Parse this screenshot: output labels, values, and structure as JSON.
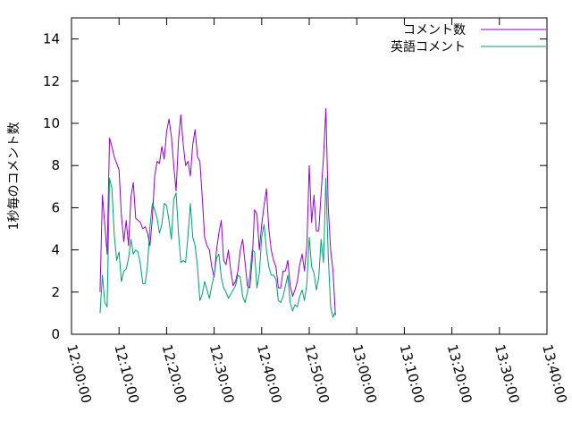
{
  "chart_data": {
    "type": "line",
    "title": "",
    "xlabel": "",
    "ylabel": "1秒毎のコメント数",
    "x_start": "12:06:00",
    "x_step_seconds": 30,
    "xlim": [
      "12:00:00",
      "13:40:00"
    ],
    "ylim": [
      0,
      15
    ],
    "x_ticks": [
      "12:00:00",
      "12:10:00",
      "12:20:00",
      "12:30:00",
      "12:40:00",
      "12:50:00",
      "13:00:00",
      "13:10:00",
      "13:20:00",
      "13:30:00",
      "13:40:00"
    ],
    "y_ticks": [
      "0",
      "2",
      "4",
      "6",
      "8",
      "10",
      "12",
      "14"
    ],
    "grid": false,
    "legend_position": "top-right",
    "series": [
      {
        "name": "コメント数",
        "color": "#9400d3",
        "values": [
          2.0,
          6.6,
          5.2,
          3.8,
          9.3,
          8.9,
          8.4,
          8.1,
          7.8,
          5.6,
          4.4,
          5.4,
          4.2,
          6.5,
          7.2,
          5.5,
          5.4,
          5.3,
          5.0,
          5.1,
          4.8,
          4.2,
          5.5,
          7.5,
          8.2,
          8.1,
          8.9,
          8.3,
          9.6,
          10.2,
          9.4,
          8.0,
          6.8,
          9.2,
          10.4,
          9.0,
          8.0,
          8.2,
          7.5,
          9.0,
          9.7,
          8.4,
          8.2,
          6.5,
          4.6,
          4.2,
          4.0,
          3.2,
          2.7,
          4.0,
          4.8,
          5.4,
          3.5,
          3.3,
          4.0,
          3.0,
          2.3,
          2.5,
          3.0,
          4.0,
          4.5,
          3.4,
          2.3,
          2.2,
          3.5,
          5.9,
          5.7,
          4.0,
          5.2,
          6.1,
          6.9,
          5.0,
          4.0,
          3.5,
          3.2,
          2.2,
          2.2,
          3.0,
          3.0,
          3.5,
          2.3,
          1.8,
          2.1,
          2.5,
          3.3,
          3.8,
          3.0,
          4.2,
          8.0,
          5.3,
          6.6,
          4.9,
          4.9,
          6.7,
          8.4,
          10.7,
          6.0,
          4.0,
          3.0,
          0.9
        ]
      },
      {
        "name": "英語コメント",
        "color": "#009e73",
        "values": [
          1.0,
          2.8,
          1.5,
          1.3,
          7.4,
          6.9,
          4.7,
          3.5,
          3.9,
          2.5,
          3.0,
          3.1,
          3.6,
          4.5,
          3.8,
          4.0,
          3.9,
          3.3,
          2.4,
          2.4,
          3.3,
          5.1,
          6.2,
          5.9,
          5.5,
          4.8,
          5.2,
          6.2,
          6.1,
          5.4,
          4.5,
          6.4,
          6.7,
          4.8,
          3.4,
          3.5,
          3.4,
          4.7,
          6.2,
          4.6,
          4.2,
          3.2,
          1.6,
          1.9,
          2.5,
          2.1,
          1.7,
          2.3,
          2.8,
          3.6,
          3.8,
          2.7,
          2.2,
          2.0,
          1.7,
          1.9,
          2.1,
          2.3,
          2.8,
          2.7,
          1.8,
          1.5,
          2.0,
          2.8,
          4.0,
          3.9,
          2.2,
          2.9,
          4.6,
          5.2,
          4.0,
          3.2,
          2.8,
          2.8,
          2.6,
          1.6,
          1.5,
          1.8,
          2.3,
          2.8,
          1.5,
          1.1,
          1.4,
          1.3,
          1.8,
          2.1,
          1.6,
          2.4,
          4.6,
          3.2,
          2.9,
          2.1,
          2.7,
          4.5,
          3.4,
          7.4,
          3.7,
          1.3,
          0.8,
          1.1
        ]
      }
    ]
  }
}
